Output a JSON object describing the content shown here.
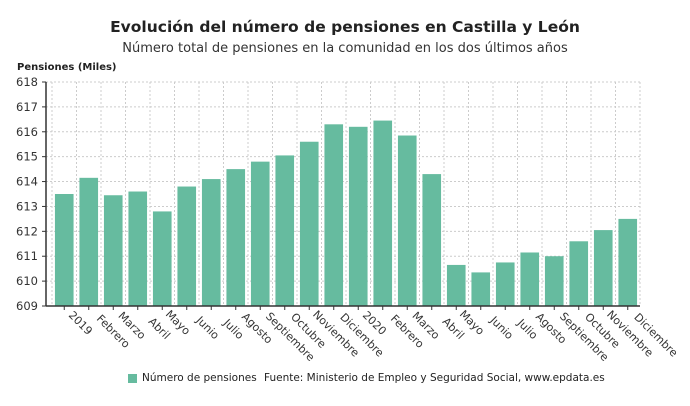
{
  "chart_data": {
    "type": "bar",
    "title": "Evolución del número de pensiones en Castilla y León",
    "subtitle": "Número total de pensiones en la comunidad en los dos últimos años",
    "ylabel": "Pensiones (Miles)",
    "xlabel": "",
    "ylim": [
      609,
      618
    ],
    "yticks": [
      609,
      610,
      611,
      612,
      613,
      614,
      615,
      616,
      617,
      618
    ],
    "grid": true,
    "categories": [
      "2019",
      "Febrero",
      "Marzo",
      "Abril",
      "Mayo",
      "Junio",
      "Julio",
      "Agosto",
      "Septiembre",
      "Octubre",
      "Noviembre",
      "Diciembre",
      "2020",
      "Febrero",
      "Marzo",
      "Abril",
      "Mayo",
      "Junio",
      "Julio",
      "Agosto",
      "Septiembre",
      "Octubre",
      "Noviembre",
      "Diciembre"
    ],
    "series": [
      {
        "name": "Número de pensiones",
        "color": "#66bb9f",
        "values": [
          613.5,
          614.15,
          613.45,
          613.6,
          612.8,
          613.8,
          614.1,
          614.5,
          614.8,
          615.05,
          615.6,
          616.3,
          616.2,
          616.45,
          615.85,
          614.3,
          610.65,
          610.35,
          610.75,
          611.15,
          611.0,
          611.6,
          612.05,
          612.5
        ]
      }
    ],
    "legend": "bottom-left",
    "source": "Fuente: Ministerio de Empleo y Seguridad Social, www.epdata.es"
  }
}
